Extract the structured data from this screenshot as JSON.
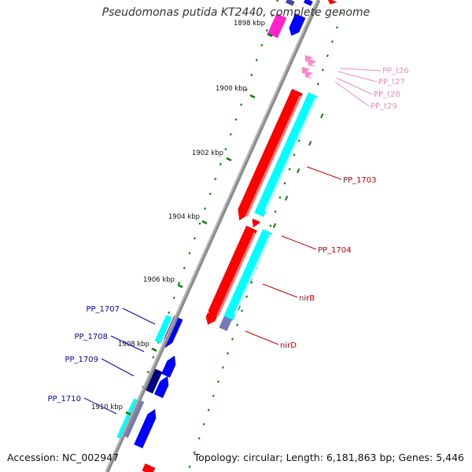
{
  "title": "Pseudomonas putida KT2440, complete genome",
  "footer": {
    "accession": "Accession: NC_002947",
    "summary": "Topology: circular; Length: 6,181,863 bp; Genes: 5,446"
  },
  "colors": {
    "backbone": "#8c8c8c",
    "cds_red": "#ff0000",
    "cds_blue": "#0000ff",
    "cds_navy": "#000080",
    "cyan": "#00ffff",
    "trna": "#ff88cc",
    "magenta": "#ff22cc",
    "tick_green": "#008000",
    "label_red": "#cc0000",
    "label_blue": "#0000cc",
    "label_pink": "#f48cc6"
  },
  "scale": [
    "1898 kbp",
    "1900 kbp",
    "1902 kbp",
    "1904 kbp",
    "1906 kbp",
    "1908 kbp",
    "1910 kbp"
  ],
  "gene_labels": {
    "red": [
      "PP_1703",
      "PP_1704",
      "nirB",
      "nirD"
    ],
    "blue": [
      "PP_1707",
      "PP_1708",
      "PP_1709",
      "PP_1710"
    ],
    "pink": [
      "PP_t26",
      "PP_t27",
      "PP_t28",
      "PP_t29"
    ]
  }
}
